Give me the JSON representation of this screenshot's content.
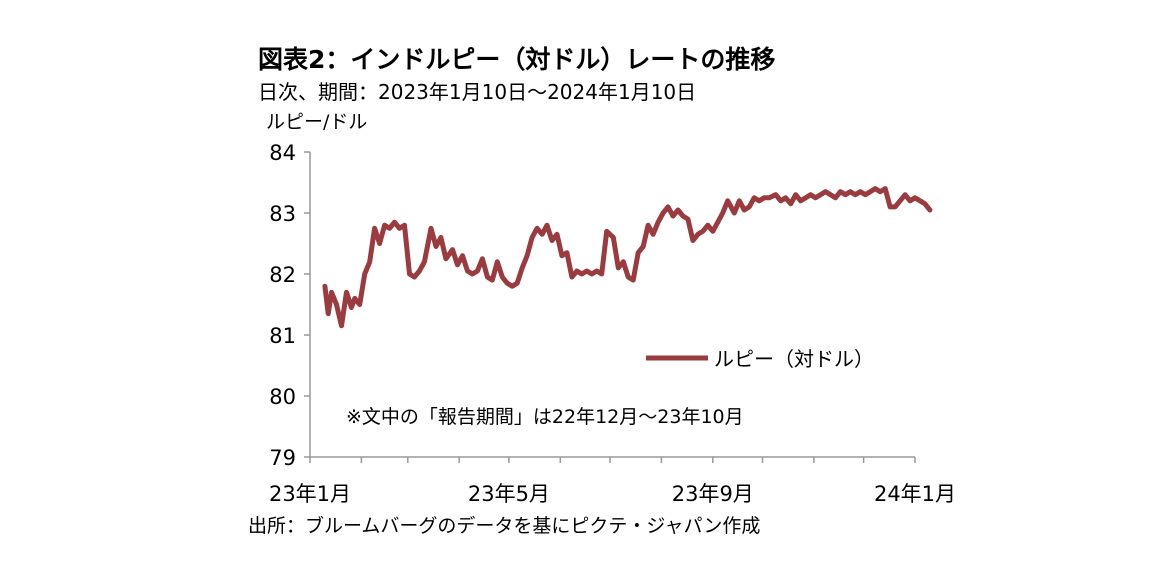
{
  "header": {
    "title": "図表2：インドルピー（対ドル）レートの推移",
    "subtitle": "日次、期間：2023年1月10日～2024年1月10日",
    "unit": "ルピー/ドル"
  },
  "footer": {
    "source": "出所：ブルームバーグのデータを基にピクテ・ジャパン作成"
  },
  "chart_data": {
    "type": "line",
    "ylim": [
      79,
      84
    ],
    "yticks": [
      "79",
      "80",
      "81",
      "82",
      "83",
      "84"
    ],
    "xtick_labels": [
      "23年1月",
      "23年5月",
      "23年9月",
      "24年1月"
    ],
    "legend_position": "center-right",
    "annotation": "※文中の「報告期間」は22年12月～23年10月",
    "colors": {
      "line": "#9b3b3f",
      "axis": "#999999"
    },
    "series": [
      {
        "name": "ルピー（対ドル）",
        "x": [
          "2023-01-10",
          "2023-01-12",
          "2023-01-14",
          "2023-01-17",
          "2023-01-20",
          "2023-01-23",
          "2023-01-26",
          "2023-01-28",
          "2023-01-31",
          "2023-02-03",
          "2023-02-06",
          "2023-02-09",
          "2023-02-12",
          "2023-02-15",
          "2023-02-18",
          "2023-02-21",
          "2023-02-24",
          "2023-02-27",
          "2023-03-02",
          "2023-03-05",
          "2023-03-08",
          "2023-03-11",
          "2023-03-15",
          "2023-03-18",
          "2023-03-21",
          "2023-03-24",
          "2023-03-28",
          "2023-03-31",
          "2023-04-03",
          "2023-04-06",
          "2023-04-09",
          "2023-04-12",
          "2023-04-15",
          "2023-04-18",
          "2023-04-21",
          "2023-04-24",
          "2023-04-27",
          "2023-04-30",
          "2023-05-03",
          "2023-05-06",
          "2023-05-09",
          "2023-05-12",
          "2023-05-15",
          "2023-05-18",
          "2023-05-21",
          "2023-05-24",
          "2023-05-27",
          "2023-05-30",
          "2023-06-02",
          "2023-06-05",
          "2023-06-08",
          "2023-06-11",
          "2023-06-14",
          "2023-06-17",
          "2023-06-20",
          "2023-06-23",
          "2023-06-26",
          "2023-06-29",
          "2023-07-03",
          "2023-07-06",
          "2023-07-09",
          "2023-07-12",
          "2023-07-15",
          "2023-07-18",
          "2023-07-21",
          "2023-07-24",
          "2023-07-27",
          "2023-07-30",
          "2023-08-02",
          "2023-08-05",
          "2023-08-08",
          "2023-08-11",
          "2023-08-14",
          "2023-08-17",
          "2023-08-20",
          "2023-08-23",
          "2023-08-26",
          "2023-08-29",
          "2023-09-01",
          "2023-09-04",
          "2023-09-07",
          "2023-09-10",
          "2023-09-14",
          "2023-09-17",
          "2023-09-20",
          "2023-09-23",
          "2023-09-26",
          "2023-09-29",
          "2023-10-02",
          "2023-10-05",
          "2023-10-09",
          "2023-10-12",
          "2023-10-15",
          "2023-10-18",
          "2023-10-21",
          "2023-10-24",
          "2023-10-27",
          "2023-10-30",
          "2023-11-02",
          "2023-11-05",
          "2023-11-08",
          "2023-11-11",
          "2023-11-14",
          "2023-11-17",
          "2023-11-20",
          "2023-11-23",
          "2023-11-26",
          "2023-11-29",
          "2023-12-02",
          "2023-12-05",
          "2023-12-08",
          "2023-12-11",
          "2023-12-14",
          "2023-12-17",
          "2023-12-20",
          "2023-12-23",
          "2023-12-26",
          "2023-12-29",
          "2024-01-01",
          "2024-01-04",
          "2024-01-07",
          "2024-01-10"
        ],
        "values": [
          81.8,
          81.35,
          81.7,
          81.5,
          81.15,
          81.7,
          81.45,
          81.6,
          81.5,
          82.0,
          82.2,
          82.75,
          82.5,
          82.8,
          82.75,
          82.85,
          82.75,
          82.8,
          82.0,
          81.95,
          82.05,
          82.2,
          82.75,
          82.45,
          82.6,
          82.25,
          82.4,
          82.15,
          82.3,
          82.05,
          82.0,
          82.05,
          82.25,
          81.95,
          81.9,
          82.2,
          81.95,
          81.85,
          81.8,
          81.85,
          82.1,
          82.3,
          82.6,
          82.75,
          82.65,
          82.8,
          82.55,
          82.65,
          82.3,
          82.35,
          81.95,
          82.05,
          82.0,
          82.05,
          82.0,
          82.05,
          82.0,
          82.7,
          82.6,
          82.1,
          82.2,
          81.95,
          81.9,
          82.35,
          82.45,
          82.8,
          82.65,
          82.85,
          83.0,
          83.1,
          82.95,
          83.05,
          82.95,
          82.9,
          82.55,
          82.65,
          82.7,
          82.8,
          82.7,
          82.85,
          83.0,
          83.2,
          83.0,
          83.2,
          83.05,
          83.1,
          83.25,
          83.2,
          83.25,
          83.25,
          83.3,
          83.2,
          83.25,
          83.15,
          83.3,
          83.2,
          83.25,
          83.3,
          83.25,
          83.3,
          83.35,
          83.3,
          83.25,
          83.35,
          83.3,
          83.35,
          83.3,
          83.35,
          83.3,
          83.35,
          83.4,
          83.35,
          83.4,
          83.1,
          83.1,
          83.2,
          83.3,
          83.2,
          83.25,
          83.2,
          83.15,
          83.05
        ]
      }
    ]
  }
}
